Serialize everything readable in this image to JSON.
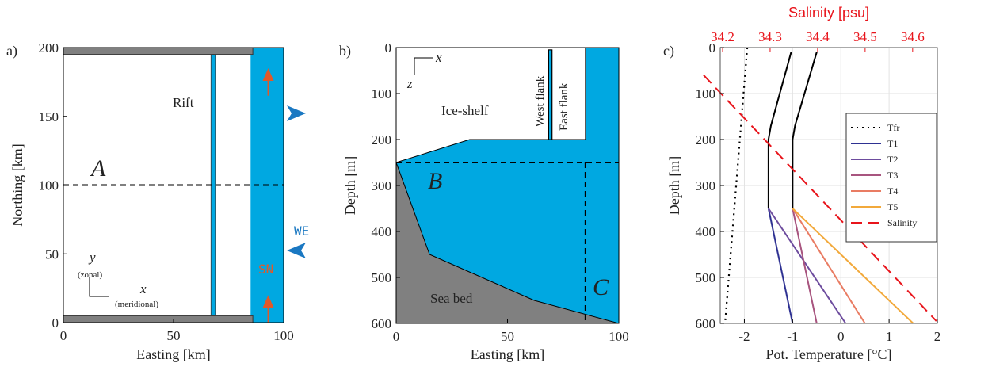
{
  "chart_data": [
    {
      "type": "schematic",
      "panel": "a)",
      "xlabel": "Easting [km]",
      "ylabel": "Northing [km]",
      "xlim": [
        0,
        100
      ],
      "ylim": [
        0,
        200
      ],
      "xticks": [
        0,
        50,
        100
      ],
      "yticks": [
        0,
        50,
        100,
        150,
        200
      ],
      "annotations": [
        "Rift",
        "A",
        "WE",
        "SN",
        "y",
        "(zonal)",
        "x",
        "(meridional)"
      ]
    },
    {
      "type": "schematic",
      "panel": "b)",
      "xlabel": "Easting [km]",
      "ylabel": "Depth [m]",
      "xlim": [
        0,
        100
      ],
      "ylim": [
        0,
        600
      ],
      "y_reversed": true,
      "xticks": [
        0,
        50,
        100
      ],
      "yticks": [
        0,
        100,
        200,
        300,
        400,
        500,
        600
      ],
      "annotations": [
        "Ice-shelf",
        "West flank",
        "East flank",
        "B",
        "C",
        "Sea bed",
        "x",
        "z"
      ]
    },
    {
      "type": "line",
      "panel": "c)",
      "xlabel": "Pot. Temperature [°C]",
      "ylabel": "Depth [m]",
      "x2label": "Salinity [psu]",
      "xlim": [
        -2.5,
        2
      ],
      "ylim": [
        0,
        600
      ],
      "y_reversed": true,
      "x2lim": [
        34.195,
        34.652
      ],
      "xticks": [
        -2,
        -1,
        0,
        1,
        2
      ],
      "yticks": [
        0,
        100,
        200,
        300,
        400,
        500,
        600
      ],
      "x2ticks": [
        34.2,
        34.3,
        34.4,
        34.5,
        34.6
      ],
      "grid": true,
      "legend": "upper right",
      "series": [
        {
          "name": "Tfr",
          "color": "#000000",
          "dash": "dotted",
          "x": [
            -1.94,
            -2.4
          ],
          "values": [
            0,
            600
          ]
        },
        {
          "color": "#000000",
          "x": [
            -1.03,
            -1.45,
            -1.5,
            -1.5
          ],
          "values": [
            10,
            170,
            200,
            350
          ]
        },
        {
          "color": "#000000",
          "x": [
            -0.5,
            -0.95,
            -1.0,
            -1.0
          ],
          "values": [
            10,
            170,
            200,
            350
          ]
        },
        {
          "name": "T1",
          "color": "#2e3192",
          "x": [
            -1.5,
            -1.0
          ],
          "values": [
            350,
            600
          ]
        },
        {
          "name": "T2",
          "color": "#6d4c9e",
          "x": [
            -1.5,
            0.1
          ],
          "values": [
            350,
            600
          ]
        },
        {
          "name": "T3",
          "color": "#a8557f",
          "x": [
            -1.0,
            -0.5
          ],
          "values": [
            350,
            600
          ]
        },
        {
          "name": "T4",
          "color": "#e97c63",
          "x": [
            -1.0,
            0.5
          ],
          "values": [
            350,
            600
          ]
        },
        {
          "name": "T5",
          "color": "#f2a93b",
          "x": [
            -1.0,
            1.5
          ],
          "values": [
            350,
            600
          ]
        },
        {
          "name": "Salinity",
          "color": "#e8141b",
          "dash": "dashed",
          "axis": "x2",
          "x": [
            34.16,
            34.65
          ],
          "values": [
            60,
            595
          ]
        }
      ]
    }
  ]
}
